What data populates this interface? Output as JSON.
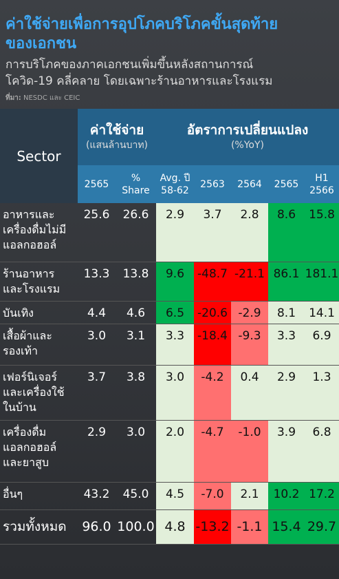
{
  "header": {
    "title": "ค่าใช้จ่ายเพื่อการอุปโภคบริโภคขั้นสุดท้าย\nของเอกชน",
    "subtitle": "การบริโภคของภาคเอกชนเพิ่มขึ้นหลังสถานการณ์\nโควิด-19 คลี่คลาย โดยเฉพาะร้านอาหารและโรงแรม",
    "source_label": "ที่มา:",
    "source": "NESDC และ CEIC"
  },
  "table": {
    "sector_header": "Sector",
    "group_headers": [
      {
        "title": "ค่าใช้จ่าย",
        "unit": "(แสนล้านบาท)"
      },
      {
        "title": "อัตราการเปลี่ยนแปลง",
        "unit": "(%YoY)"
      }
    ],
    "columns": [
      "2565",
      "%\nShare",
      "Avg. ปี\n58-62",
      "2563",
      "2564",
      "2565",
      "H1\n2566"
    ],
    "rows": [
      [
        "อาหารและ\nเครื่องดื่มไม่มี\nแอลกอฮอล์",
        "25.6",
        "26.6",
        "2.9",
        "3.7",
        "2.8",
        "8.6",
        "15.8"
      ],
      [
        "ร้านอาหาร\nและโรงแรม",
        "13.3",
        "13.8",
        "9.6",
        "-48.7",
        "-21.1",
        "86.1",
        "181.1"
      ],
      [
        "บันเทิง",
        "4.4",
        "4.6",
        "6.5",
        "-20.6",
        "-2.9",
        "8.1",
        "14.1"
      ],
      [
        "เสื้อผ้าและ\nรองเท้า",
        "3.0",
        "3.1",
        "3.3",
        "-18.4",
        "-9.3",
        "3.3",
        "6.9"
      ],
      [
        "เฟอร์นิเจอร์\nและเครื่องใช้\nในบ้าน",
        "3.7",
        "3.8",
        "3.0",
        "-4.2",
        "0.4",
        "2.9",
        "1.3"
      ],
      [
        "เครื่องดื่ม\nแอลกอฮอล์\nและยาสูบ",
        "2.9",
        "3.0",
        "2.0",
        "-4.7",
        "-1.0",
        "3.9",
        "6.8"
      ],
      [
        "อื่นๆ",
        "43.2",
        "45.0",
        "4.5",
        "-7.0",
        "2.1",
        "10.2",
        "17.2"
      ]
    ],
    "total": [
      "รวมทั้งหมด",
      "96.0",
      "100.0",
      "4.8",
      "-13.2",
      "-1.1",
      "15.4",
      "29.7"
    ]
  }
}
